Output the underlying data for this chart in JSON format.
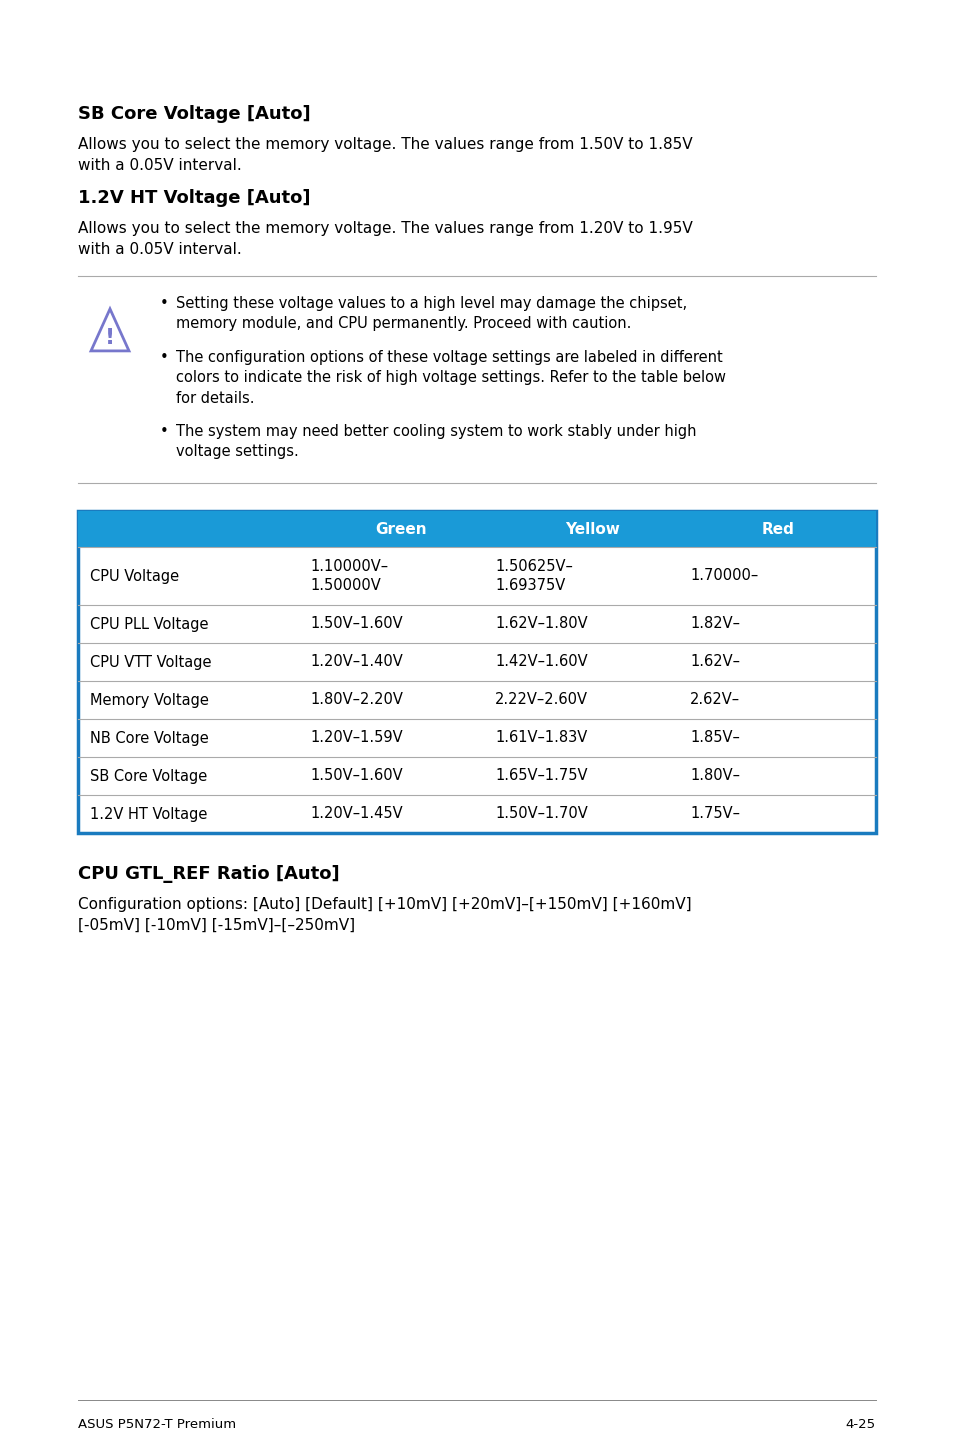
{
  "bg_color": "#ffffff",
  "heading1": "SB Core Voltage [Auto]",
  "para1": "Allows you to select the memory voltage. The values range from 1.50V to 1.85V\nwith a 0.05V interval.",
  "heading2": "1.2V HT Voltage [Auto]",
  "para2": "Allows you to select the memory voltage. The values range from 1.20V to 1.95V\nwith a 0.05V interval.",
  "warning_bullets": [
    "Setting these voltage values to a high level may damage the chipset,\nmemory module, and CPU permanently. Proceed with caution.",
    "The configuration options of these voltage settings are labeled in different\ncolors to indicate the risk of high voltage settings. Refer to the table below\nfor details.",
    "The system may need better cooling system to work stably under high\nvoltage settings."
  ],
  "table_header": [
    "",
    "Green",
    "Yellow",
    "Red"
  ],
  "table_header_bg": "#1a9ad7",
  "table_header_color": "#ffffff",
  "table_rows": [
    [
      "CPU Voltage",
      "1.10000V–\n1.50000V",
      "1.50625V–\n1.69375V",
      "1.70000–"
    ],
    [
      "CPU PLL Voltage",
      "1.50V–1.60V",
      "1.62V–1.80V",
      "1.82V–"
    ],
    [
      "CPU VTT Voltage",
      "1.20V–1.40V",
      "1.42V–1.60V",
      "1.62V–"
    ],
    [
      "Memory Voltage",
      "1.80V–2.20V",
      "2.22V–2.60V",
      "2.62V–"
    ],
    [
      "NB Core Voltage",
      "1.20V–1.59V",
      "1.61V–1.83V",
      "1.85V–"
    ],
    [
      "SB Core Voltage",
      "1.50V–1.60V",
      "1.65V–1.75V",
      "1.80V–"
    ],
    [
      "1.2V HT Voltage",
      "1.20V–1.45V",
      "1.50V–1.70V",
      "1.75V–"
    ]
  ],
  "table_border_color": "#1a7bbf",
  "table_row_line_color": "#aaaaaa",
  "heading3": "CPU GTL_REF Ratio [Auto]",
  "para3": "Configuration options: [Auto] [Default] [+10mV] [+20mV]–[+150mV] [+160mV]\n[-05mV] [-10mV] [-15mV]–[–250mV]",
  "footer_left": "ASUS P5N72-T Premium",
  "footer_right": "4-25"
}
